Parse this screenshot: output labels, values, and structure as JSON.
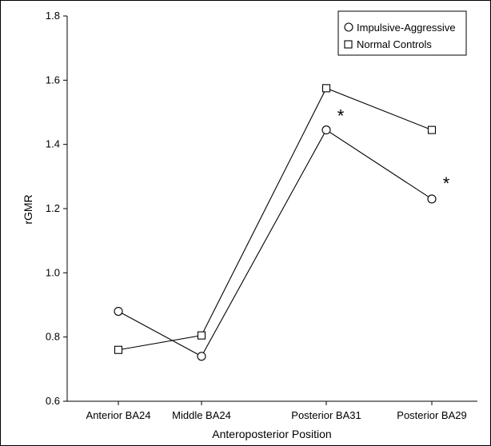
{
  "chart_data": {
    "type": "line",
    "xlabel": "Anteroposterior Position",
    "ylabel": "rGMR",
    "categories": [
      "Anterior BA24",
      "Middle BA24",
      "Posterior BA31",
      "Posterior BA29"
    ],
    "ylim": [
      0.6,
      1.8
    ],
    "yticks": [
      "0.6",
      "0.8",
      "1.0",
      "1.2",
      "1.4",
      "1.6",
      "1.8"
    ],
    "series": [
      {
        "name": "Impulsive-Aggressive",
        "marker": "circle",
        "values": [
          0.88,
          0.74,
          1.445,
          1.23
        ]
      },
      {
        "name": "Normal Controls",
        "marker": "square",
        "values": [
          0.76,
          0.805,
          1.575,
          1.445
        ]
      }
    ],
    "annotations": [
      {
        "text": "*",
        "category": "Posterior BA31",
        "y": 1.49
      },
      {
        "text": "*",
        "category": "Posterior BA29",
        "y": 1.28
      }
    ],
    "legend_position": "top-right",
    "grid": false
  }
}
